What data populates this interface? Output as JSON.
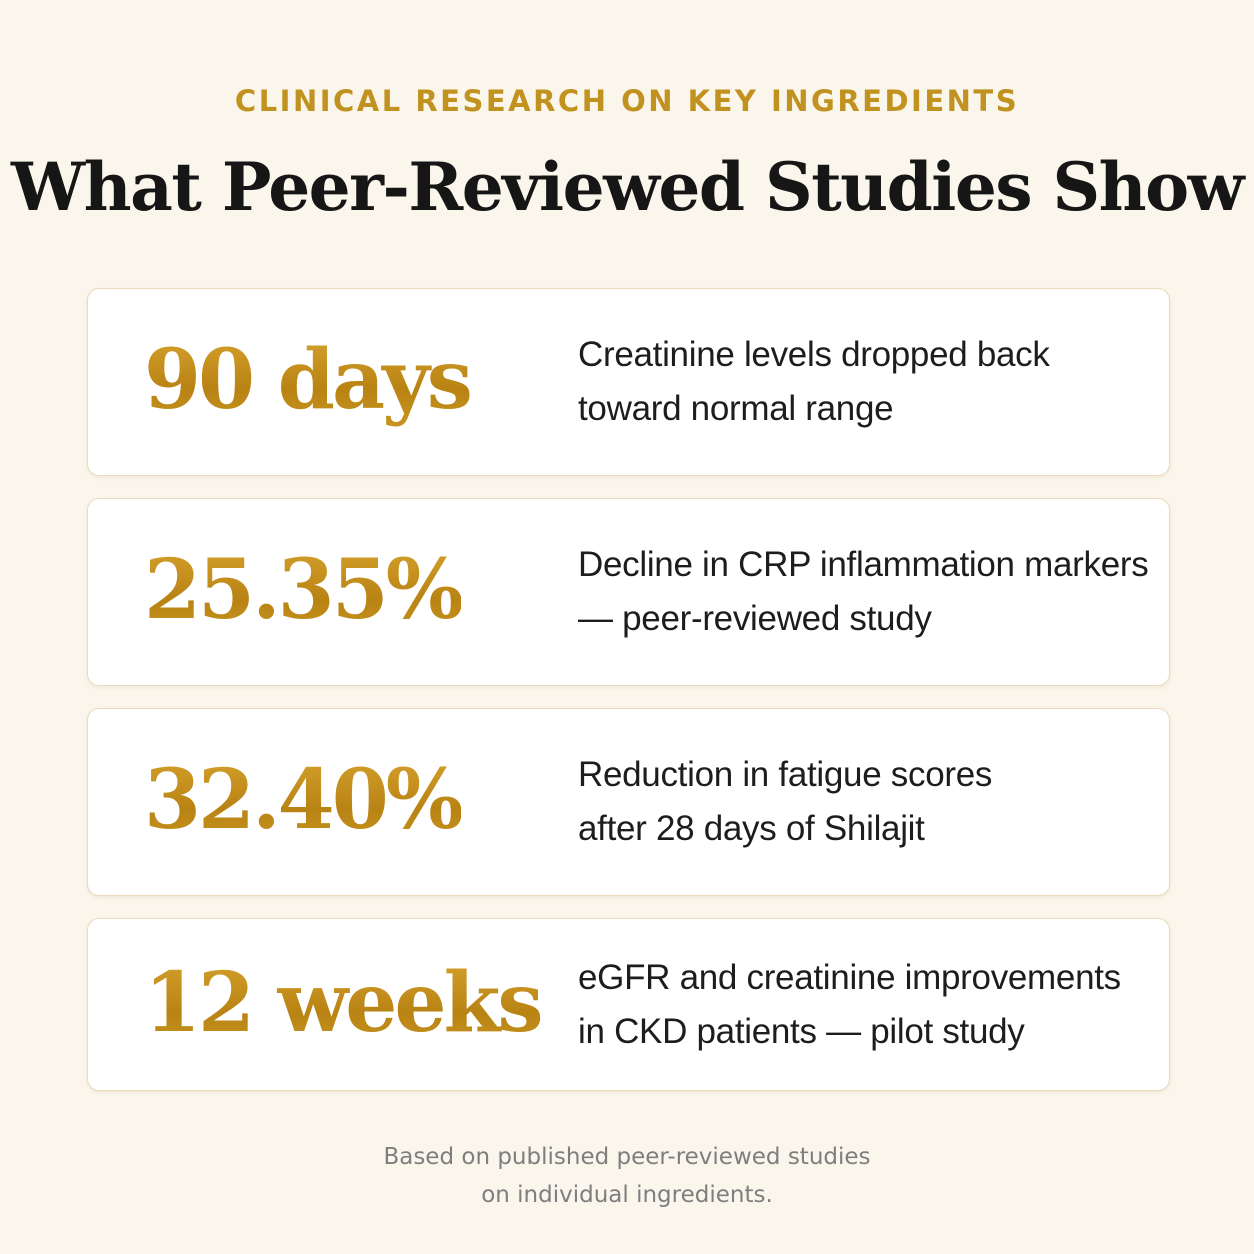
{
  "header": {
    "eyebrow": "CLINICAL RESEARCH ON KEY INGREDIENTS",
    "title": "What Peer-Reviewed Studies Show"
  },
  "accent_color": "#c38f1d",
  "background_color": "#fbf6ec",
  "stats": [
    {
      "value": "90 days",
      "line1": "Creatinine levels dropped back",
      "line2": "toward normal range"
    },
    {
      "value": "25.35%",
      "line1": "Decline in CRP inflammation markers",
      "line2": "— peer-reviewed study"
    },
    {
      "value": "32.40%",
      "line1": "Reduction in fatigue scores",
      "line2": "after 28 days of Shilajit"
    },
    {
      "value": "12 weeks",
      "line1": "eGFR and creatinine improvements",
      "line2": "in CKD patients — pilot study"
    }
  ],
  "footnote": {
    "line1": "Based on published peer-reviewed studies",
    "line2": "on individual ingredients."
  }
}
